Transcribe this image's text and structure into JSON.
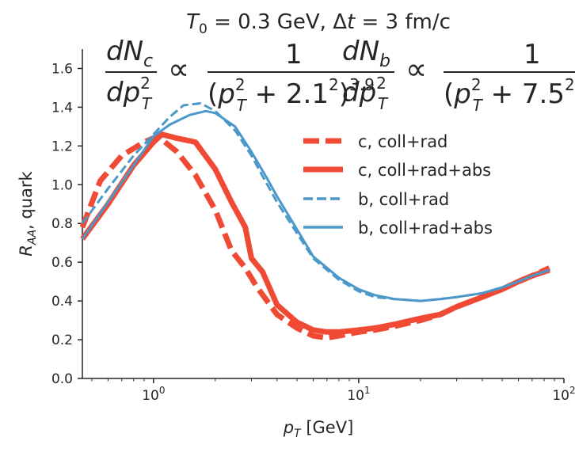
{
  "chart_data": {
    "type": "line",
    "title": "T0 = 0.3 GeV, Δt = 3 fm/c",
    "xlabel": "pT [GeV]",
    "ylabel": "RAA, quark",
    "xscale": "log",
    "xlim": [
      0.45,
      100
    ],
    "ylim": [
      0.0,
      1.7
    ],
    "xticks": [
      {
        "value": 1,
        "base": "10",
        "exp": "0"
      },
      {
        "value": 10,
        "base": "10",
        "exp": "1"
      },
      {
        "value": 100,
        "base": "10",
        "exp": "2"
      }
    ],
    "yticks": [
      "0.0",
      "0.2",
      "0.4",
      "0.6",
      "0.8",
      "1.0",
      "1.2",
      "1.4",
      "1.6"
    ],
    "grid": false,
    "legend_position": "upper right",
    "annotations": [
      {
        "lhs_num": "dN",
        "lhs_num_sub": "c",
        "lhs_den": "dp",
        "lhs_den_sup": "2",
        "lhs_den_sub": "T",
        "prop": "∝",
        "rhs_num": "1",
        "rhs_den_base": "(p",
        "rhs_den_sup": "2",
        "rhs_den_sub": "T",
        "rhs_den_plus": "+ 2.1",
        "rhs_den_sup2": "2",
        "rhs_den_close": ")",
        "rhs_den_power": "3.9"
      },
      {
        "lhs_num": "dN",
        "lhs_num_sub": "b",
        "lhs_den": "dp",
        "lhs_den_sup": "2",
        "lhs_den_sub": "T",
        "prop": "∝",
        "rhs_num": "1",
        "rhs_den_base": "(p",
        "rhs_den_sup": "2",
        "rhs_den_sub": "T",
        "rhs_den_plus": "+ 7.5",
        "rhs_den_sup2": "2"
      }
    ],
    "series": [
      {
        "name": "c, coll+rad",
        "color": "#f04a35",
        "style": "dashed",
        "width": "thick",
        "x": [
          0.45,
          0.55,
          0.7,
          0.9,
          1.05,
          1.3,
          1.6,
          2.0,
          2.4,
          2.8,
          3.2,
          4.0,
          5.0,
          6.0,
          7.0,
          8.0,
          10,
          12,
          15,
          20,
          25,
          30,
          40,
          50,
          60,
          70,
          85
        ],
        "y": [
          0.78,
          1.02,
          1.15,
          1.22,
          1.25,
          1.17,
          1.05,
          0.87,
          0.66,
          0.57,
          0.47,
          0.33,
          0.26,
          0.22,
          0.21,
          0.22,
          0.24,
          0.25,
          0.27,
          0.3,
          0.33,
          0.37,
          0.42,
          0.46,
          0.5,
          0.53,
          0.57
        ]
      },
      {
        "name": "c, coll+rad+abs",
        "color": "#f04a35",
        "style": "solid",
        "width": "thick",
        "x": [
          0.45,
          0.6,
          0.8,
          1.0,
          1.1,
          1.3,
          1.6,
          2.0,
          2.4,
          2.8,
          3.0,
          3.4,
          4.0,
          5.0,
          6.0,
          7.0,
          8.0,
          10,
          12,
          15,
          20,
          25,
          30,
          40,
          50,
          60,
          70,
          85
        ],
        "y": [
          0.72,
          0.9,
          1.1,
          1.22,
          1.26,
          1.24,
          1.22,
          1.08,
          0.91,
          0.78,
          0.62,
          0.55,
          0.38,
          0.29,
          0.25,
          0.24,
          0.24,
          0.25,
          0.26,
          0.28,
          0.31,
          0.33,
          0.37,
          0.42,
          0.46,
          0.5,
          0.53,
          0.56
        ]
      },
      {
        "name": "b, coll+rad",
        "color": "#4b98c9",
        "style": "dashed",
        "width": "thin",
        "x": [
          0.45,
          0.6,
          0.8,
          1.0,
          1.2,
          1.4,
          1.7,
          2.0,
          2.5,
          3.0,
          3.5,
          4.0,
          5.0,
          6.0,
          8.0,
          10,
          12,
          15,
          20,
          25,
          30,
          40,
          50,
          60,
          70,
          85
        ],
        "y": [
          0.8,
          0.98,
          1.15,
          1.26,
          1.35,
          1.41,
          1.42,
          1.38,
          1.28,
          1.15,
          1.02,
          0.91,
          0.75,
          0.62,
          0.51,
          0.45,
          0.42,
          0.41,
          0.4,
          0.41,
          0.42,
          0.44,
          0.47,
          0.5,
          0.53,
          0.56
        ]
      },
      {
        "name": "b, coll+rad+abs",
        "color": "#4b98c9",
        "style": "solid",
        "width": "thin",
        "x": [
          0.45,
          0.6,
          0.8,
          1.0,
          1.2,
          1.5,
          1.8,
          2.0,
          2.5,
          3.0,
          3.5,
          4.0,
          5.0,
          6.0,
          8.0,
          10,
          12,
          15,
          20,
          25,
          30,
          40,
          50,
          60,
          70,
          85
        ],
        "y": [
          0.72,
          0.91,
          1.1,
          1.25,
          1.31,
          1.36,
          1.38,
          1.37,
          1.3,
          1.17,
          1.05,
          0.94,
          0.77,
          0.63,
          0.52,
          0.46,
          0.43,
          0.41,
          0.4,
          0.41,
          0.42,
          0.44,
          0.47,
          0.5,
          0.53,
          0.56
        ]
      }
    ]
  }
}
